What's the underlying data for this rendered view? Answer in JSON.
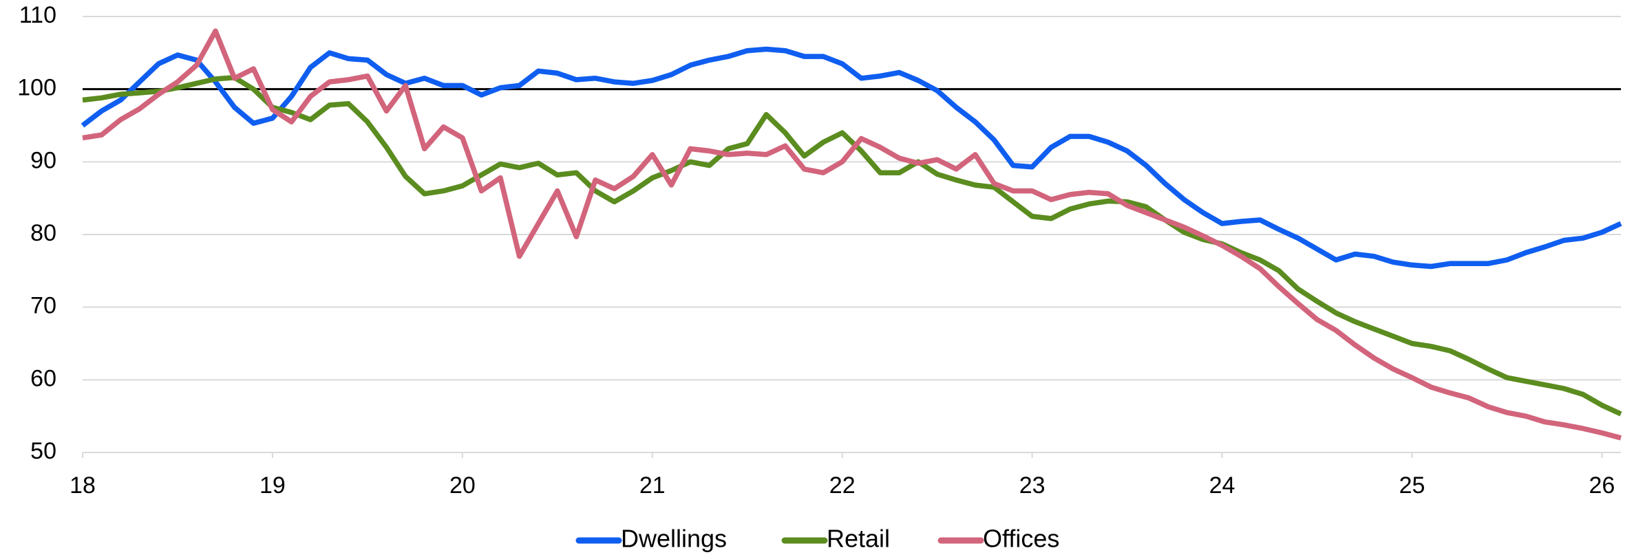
{
  "chart_data": {
    "type": "line",
    "x": [
      18,
      18.1,
      18.2,
      18.3,
      18.4,
      18.5,
      18.6,
      18.7,
      18.8,
      18.9,
      19,
      19.1,
      19.2,
      19.3,
      19.4,
      19.5,
      19.6,
      19.7,
      19.8,
      19.9,
      20,
      20.1,
      20.2,
      20.3,
      20.4,
      20.5,
      20.6,
      20.7,
      20.8,
      20.9,
      21,
      21.1,
      21.2,
      21.3,
      21.4,
      21.5,
      21.6,
      21.7,
      21.8,
      21.9,
      22,
      22.1,
      22.2,
      22.3,
      22.4,
      22.5,
      22.6,
      22.7,
      22.8,
      22.9,
      23,
      23.1,
      23.2,
      23.3,
      23.4,
      23.5,
      23.6,
      23.7,
      23.8,
      23.9,
      24,
      24.1,
      24.2,
      24.3,
      24.4,
      24.5,
      24.6,
      24.7,
      24.8,
      24.9,
      25,
      25.1,
      25.2,
      25.3,
      25.4,
      25.5,
      25.6,
      25.7,
      25.8,
      25.9,
      26,
      26.1
    ],
    "series": [
      {
        "name": "Dwellings",
        "color": "#0f5ef0",
        "values": [
          95,
          97,
          98.5,
          101,
          103.5,
          104.7,
          104,
          101,
          97.5,
          95.3,
          96,
          99,
          103,
          105,
          104.2,
          104,
          102,
          100.8,
          101.5,
          100.5,
          100.5,
          99.2,
          100.2,
          100.5,
          102.5,
          102.2,
          101.3,
          101.5,
          101,
          100.8,
          101.2,
          102,
          103.3,
          104,
          104.5,
          105.3,
          105.5,
          105.3,
          104.5,
          104.5,
          103.5,
          101.5,
          101.8,
          102.3,
          101.2,
          99.8,
          97.5,
          95.5,
          93,
          89.5,
          89.3,
          92,
          93.5,
          93.5,
          92.7,
          91.5,
          89.5,
          87,
          84.8,
          83,
          81.5,
          81.8,
          82,
          80.7,
          79.5,
          78,
          76.5,
          77.3,
          77,
          76.2,
          75.8,
          75.6,
          76,
          76,
          76,
          76.5,
          77.5,
          78.3,
          79.2,
          79.5,
          80.3,
          81.5
        ]
      },
      {
        "name": "Retail",
        "color": "#5b8c1f",
        "values": [
          98.5,
          98.8,
          99.3,
          99.5,
          99.7,
          100.2,
          100.8,
          101.4,
          101.6,
          100,
          97.5,
          96.8,
          95.8,
          97.8,
          98,
          95.5,
          92,
          88,
          85.6,
          86,
          86.7,
          88.2,
          89.7,
          89.2,
          89.8,
          88.2,
          88.5,
          86,
          84.5,
          86,
          87.8,
          88.8,
          90,
          89.5,
          91.8,
          92.5,
          96.5,
          94,
          90.8,
          92.7,
          94,
          91.5,
          88.5,
          88.5,
          90,
          88.3,
          87.5,
          86.8,
          86.5,
          84.5,
          82.5,
          82.2,
          83.5,
          84.2,
          84.6,
          84.5,
          83.8,
          82,
          80.3,
          79.3,
          78.7,
          77.5,
          76.5,
          75,
          72.5,
          70.8,
          69.2,
          68,
          67,
          66,
          65,
          64.6,
          64,
          62.8,
          61.5,
          60.3,
          59.8,
          59.3,
          58.8,
          58,
          56.5,
          55.3
        ]
      },
      {
        "name": "Offices",
        "color": "#d2647c",
        "values": [
          93.3,
          93.7,
          95.8,
          97.3,
          99.3,
          101,
          103.3,
          108,
          101.5,
          102.8,
          97.2,
          95.5,
          99,
          101,
          101.3,
          101.8,
          97,
          100.5,
          91.8,
          94.8,
          93.3,
          86,
          87.8,
          77,
          81.5,
          86,
          79.7,
          87.5,
          86.3,
          88,
          91,
          86.8,
          91.8,
          91.5,
          91,
          91.2,
          91,
          92.2,
          89,
          88.5,
          90,
          93.2,
          92,
          90.5,
          89.8,
          90.3,
          89,
          91,
          87,
          86,
          86,
          84.8,
          85.5,
          85.8,
          85.6,
          84,
          83,
          82,
          81,
          79.8,
          78.5,
          77,
          75.3,
          72.8,
          70.5,
          68.3,
          66.8,
          64.8,
          63,
          61.5,
          60.3,
          59,
          58.2,
          57.5,
          56.3,
          55.5,
          55,
          54.2,
          53.8,
          53.3,
          52.7,
          52
        ]
      }
    ],
    "hline": 100,
    "xlim": [
      18,
      26.1
    ],
    "xticks": [
      18,
      19,
      20,
      21,
      22,
      23,
      24,
      25,
      26
    ],
    "ylim": [
      50,
      110
    ],
    "yticks": [
      50,
      60,
      70,
      80,
      90,
      100,
      110
    ],
    "grid": true,
    "legend": "bottom"
  }
}
